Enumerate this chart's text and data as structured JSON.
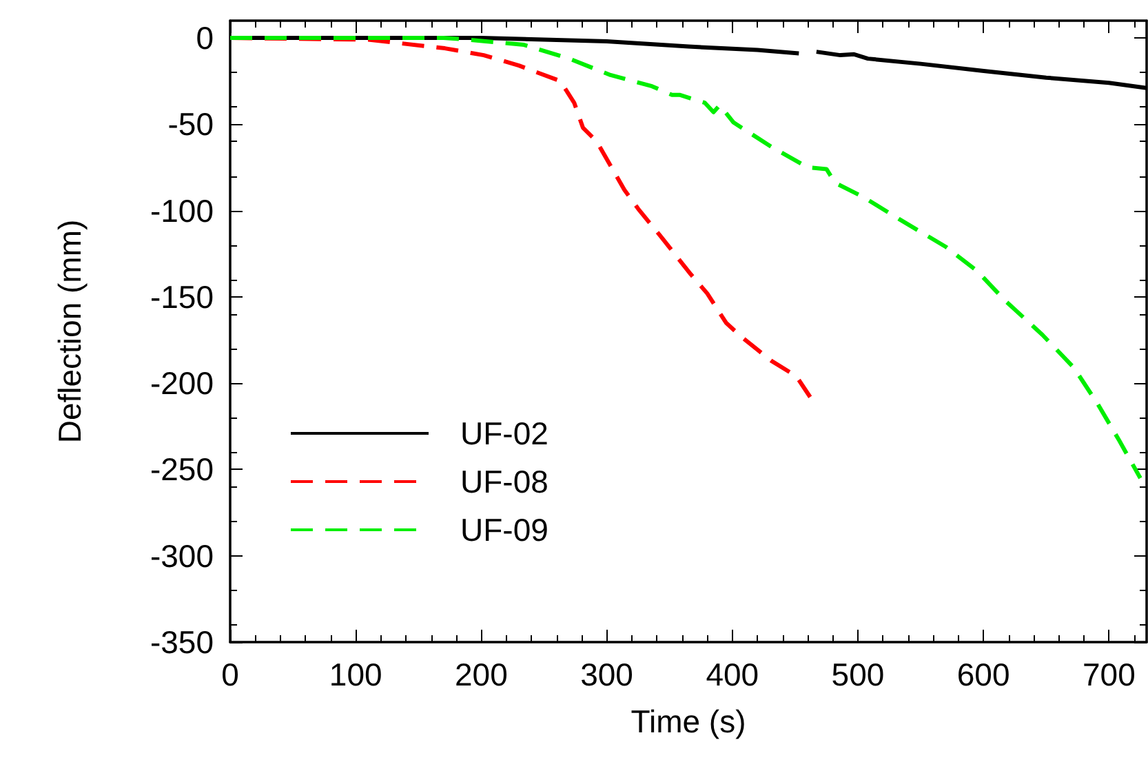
{
  "chart_data": {
    "type": "line",
    "xlabel": "Time (s)",
    "ylabel": "Deflection (mm)",
    "xlim": [
      0,
      730
    ],
    "ylim": [
      -350,
      10
    ],
    "xticks": [
      0,
      100,
      200,
      300,
      400,
      500,
      600,
      700
    ],
    "yticks": [
      -350,
      -300,
      -250,
      -200,
      -150,
      -100,
      -50,
      0
    ],
    "grid": false,
    "legend": "bottom left",
    "marker": "none",
    "series": [
      {
        "name": "UF-02",
        "color": "#000000",
        "line_style": "solid",
        "x": [
          0,
          100,
          200,
          250,
          300,
          365,
          420,
          453,
          460,
          467,
          486,
          497,
          508,
          550,
          599,
          650,
          700,
          730
        ],
        "values": [
          0,
          0,
          0,
          -1,
          -2,
          -5,
          -7,
          -9,
          null,
          -8,
          -10,
          -9.5,
          -12,
          -15,
          -19,
          -23,
          -26,
          -29
        ]
      },
      {
        "name": "UF-08",
        "color": "#ff0000",
        "line_style": "dashed",
        "x": [
          0,
          110,
          171,
          202,
          230,
          263,
          274,
          281,
          292,
          314,
          325,
          343,
          367,
          380,
          395,
          407,
          431,
          451,
          462
        ],
        "values": [
          0,
          -1,
          -6,
          -10,
          -16,
          -25,
          -37.5,
          -52,
          -60,
          -88,
          -99,
          -115,
          -137,
          -148,
          -165,
          -173,
          -187,
          -196,
          -208
        ]
      },
      {
        "name": "UF-09",
        "color": "#00ee00",
        "line_style": "dashed",
        "x": [
          0,
          170,
          190,
          234,
          270,
          303,
          336,
          352,
          358,
          378,
          385,
          390,
          401,
          431,
          460,
          475,
          482,
          504,
          533,
          570,
          595,
          617,
          647,
          672,
          691,
          708,
          725
        ],
        "values": [
          0,
          0,
          -1,
          -4,
          -12,
          -21.5,
          -28,
          -33,
          -33,
          -37.5,
          -43,
          -39,
          -49,
          -63,
          -75,
          -76,
          -84,
          -92,
          -105,
          -121,
          -135,
          -152,
          -172,
          -191,
          -212,
          -233,
          -255
        ]
      }
    ]
  }
}
